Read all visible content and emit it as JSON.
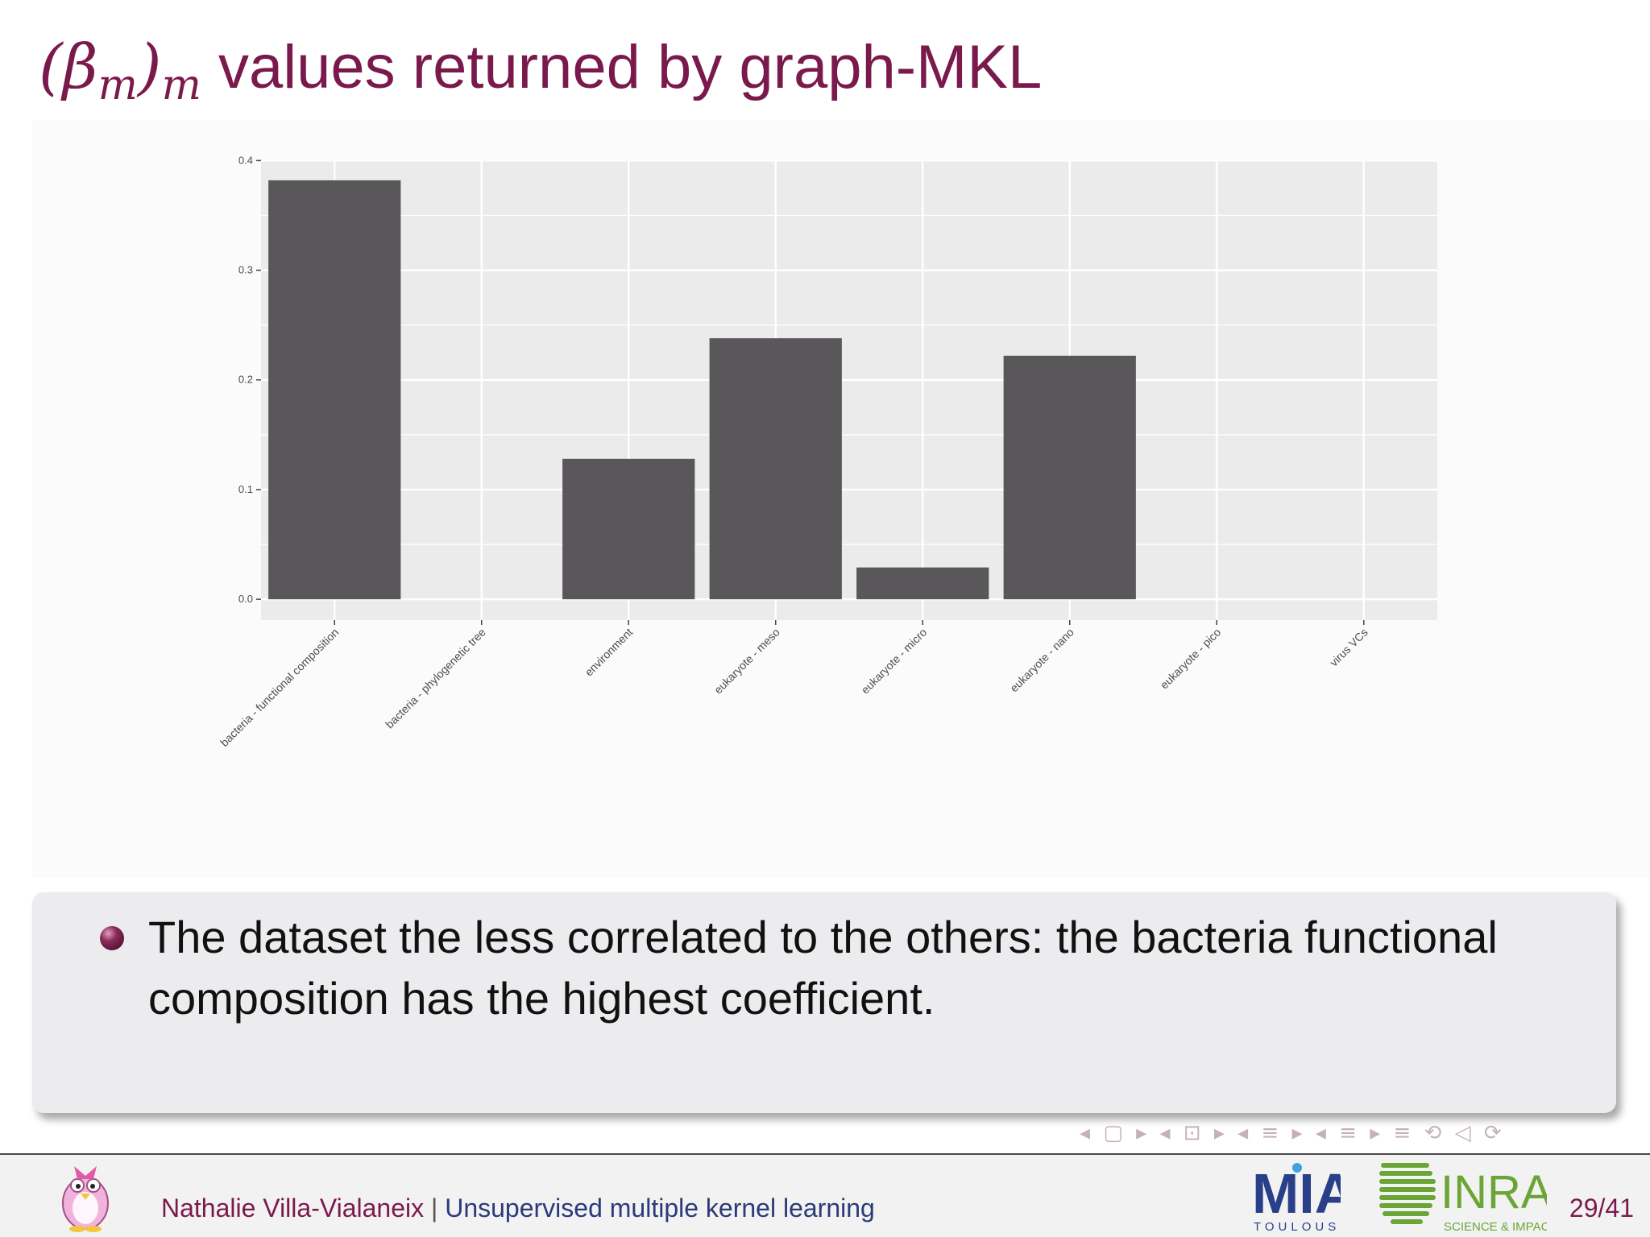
{
  "slide": {
    "title_math_base": "(β",
    "title_math_sub1": "m",
    "title_math_close": ")",
    "title_math_sub2": "m",
    "title_text": " values returned by graph-MKL"
  },
  "chart_data": {
    "type": "bar",
    "title": "",
    "xlabel": "",
    "ylabel": "",
    "categories": [
      "bacteria - functional composition",
      "bacteria - phylogenetic tree",
      "environment",
      "eukaryote - meso",
      "eukaryote - micro",
      "eukaryote - nano",
      "eukaryote - pico",
      "virus VCs"
    ],
    "values": [
      0.382,
      0,
      0.128,
      0.238,
      0.029,
      0.222,
      0,
      0
    ],
    "ylim": [
      -0.019,
      0.401
    ],
    "yticks": [
      0.0,
      0.1,
      0.2,
      0.3,
      0.4
    ],
    "ytick_labels": [
      "0.0",
      "0.1",
      "0.2",
      "0.3",
      "0.4"
    ],
    "grid": true,
    "bar_color": "#595759",
    "panel_color": "#ebebeb",
    "grid_color": "#ffffff"
  },
  "block": {
    "text": "The dataset the less correlated to the others: the bacteria functional composition has the highest coefficient."
  },
  "nav": {
    "symbols": "◂ ▢ ▸ ◂ ⊡ ▸ ◂ ≡ ▸ ◂ ≡ ▸   ≡   ⟲ ◁ ⟳"
  },
  "footer": {
    "author": "Nathalie Villa-Vialaneix",
    "separator": " | ",
    "talk_title": "Unsupervised multiple kernel learning",
    "mia_logo_text": "MIA",
    "mia_logo_subtext": "TOULOUSE",
    "inra_logo_text": "INRA",
    "inra_logo_subtext": "SCIENCE & IMPACT",
    "page_number": "29/41"
  },
  "colors": {
    "title": "#7a1a4c",
    "author": "#7a1a4c",
    "talk": "#2b3a78",
    "block_bg": "#ececef"
  }
}
